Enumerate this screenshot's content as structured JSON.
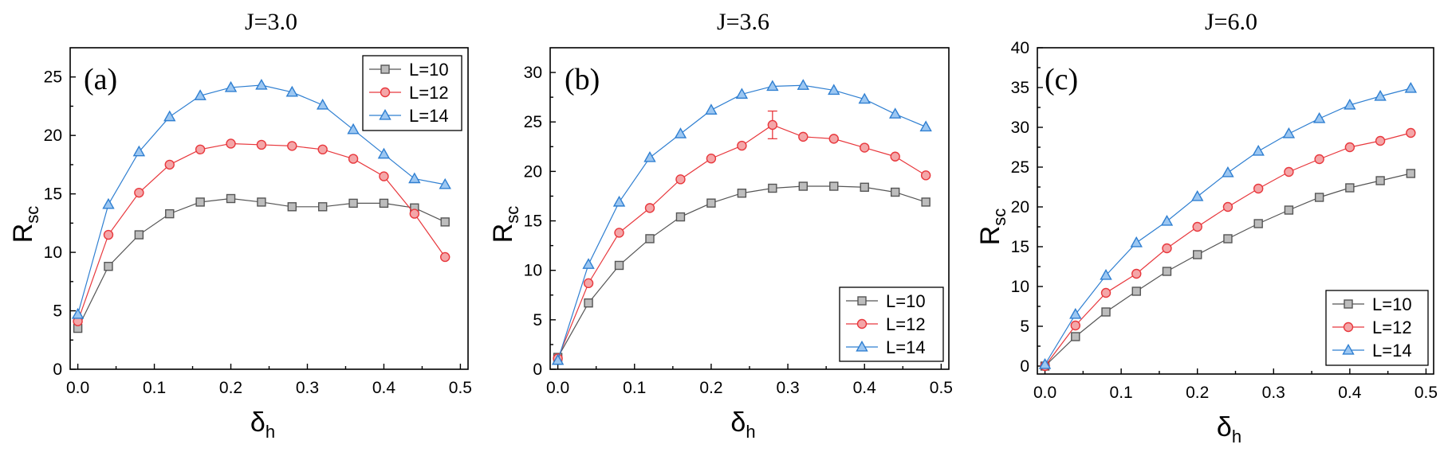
{
  "chart_data": [
    {
      "type": "line",
      "panel_label": "(a)",
      "title": "J=3.0",
      "xlabel": "δ",
      "xlabel_sub": "h",
      "ylabel": "R",
      "ylabel_sub": "sc",
      "xlim": [
        -0.01,
        0.51
      ],
      "ylim": [
        0,
        27.5
      ],
      "xticks": [
        0.0,
        0.1,
        0.2,
        0.3,
        0.4,
        0.5
      ],
      "xtick_labels": [
        "0.0",
        "0.1",
        "0.2",
        "0.3",
        "0.4",
        "0.5"
      ],
      "yticks": [
        0,
        5,
        10,
        15,
        20,
        25
      ],
      "ytick_labels": [
        "0",
        "5",
        "10",
        "15",
        "20",
        "25"
      ],
      "legend_position": "top-right",
      "x": [
        0.0,
        0.04,
        0.08,
        0.12,
        0.16,
        0.2,
        0.24,
        0.28,
        0.32,
        0.36,
        0.4,
        0.44,
        0.48
      ],
      "series": [
        {
          "name": "L=10",
          "marker": "square",
          "color": "#555555",
          "fill": "#bdbdbd",
          "values": [
            3.5,
            8.8,
            11.5,
            13.3,
            14.3,
            14.6,
            14.3,
            13.9,
            13.9,
            14.2,
            14.2,
            13.8,
            12.6
          ]
        },
        {
          "name": "L=12",
          "marker": "circle",
          "color": "#e8383d",
          "fill": "#f4a6a8",
          "values": [
            4.1,
            11.5,
            15.1,
            17.5,
            18.8,
            19.3,
            19.2,
            19.1,
            18.8,
            18.0,
            16.5,
            13.3,
            9.6
          ]
        },
        {
          "name": "L=14",
          "marker": "triangle",
          "color": "#2f7fd1",
          "fill": "#9cc7f2",
          "values": [
            4.7,
            14.1,
            18.6,
            21.6,
            23.4,
            24.1,
            24.3,
            23.7,
            22.6,
            20.5,
            18.4,
            16.3,
            15.8
          ]
        }
      ]
    },
    {
      "type": "line",
      "panel_label": "(b)",
      "title": "J=3.6",
      "xlabel": "δ",
      "xlabel_sub": "h",
      "ylabel": "R",
      "ylabel_sub": "sc",
      "xlim": [
        -0.01,
        0.51
      ],
      "ylim": [
        0,
        32.5
      ],
      "xticks": [
        0.0,
        0.1,
        0.2,
        0.3,
        0.4,
        0.5
      ],
      "xtick_labels": [
        "0.0",
        "0.1",
        "0.2",
        "0.3",
        "0.4",
        "0.5"
      ],
      "yticks": [
        0,
        5,
        10,
        15,
        20,
        25,
        30
      ],
      "ytick_labels": [
        "0",
        "5",
        "10",
        "15",
        "20",
        "25",
        "30"
      ],
      "legend_position": "bottom-right",
      "x": [
        0.0,
        0.04,
        0.08,
        0.12,
        0.16,
        0.2,
        0.24,
        0.28,
        0.32,
        0.36,
        0.4,
        0.44,
        0.48
      ],
      "series": [
        {
          "name": "L=10",
          "marker": "square",
          "color": "#555555",
          "fill": "#bdbdbd",
          "values": [
            1.2,
            6.7,
            10.5,
            13.2,
            15.4,
            16.8,
            17.8,
            18.3,
            18.5,
            18.5,
            18.4,
            17.9,
            16.9
          ]
        },
        {
          "name": "L=12",
          "marker": "circle",
          "color": "#e8383d",
          "fill": "#f4a6a8",
          "values": [
            1.1,
            8.7,
            13.8,
            16.3,
            19.2,
            21.3,
            22.6,
            24.7,
            23.5,
            23.3,
            22.4,
            21.5,
            19.6
          ],
          "error_bar": {
            "x": 0.28,
            "low": 23.3,
            "high": 26.1
          }
        },
        {
          "name": "L=14",
          "marker": "triangle",
          "color": "#2f7fd1",
          "fill": "#9cc7f2",
          "values": [
            0.9,
            10.6,
            16.9,
            21.4,
            23.8,
            26.2,
            27.8,
            28.6,
            28.7,
            28.2,
            27.3,
            25.8,
            24.5
          ]
        }
      ]
    },
    {
      "type": "line",
      "panel_label": "(c)",
      "title": "J=6.0",
      "xlabel": "δ",
      "xlabel_sub": "h",
      "ylabel": "R",
      "ylabel_sub": "sc",
      "xlim": [
        -0.01,
        0.51
      ],
      "ylim": [
        -1,
        40
      ],
      "xticks": [
        0.0,
        0.1,
        0.2,
        0.3,
        0.4,
        0.5
      ],
      "xtick_labels": [
        "0.0",
        "0.1",
        "0.2",
        "0.3",
        "0.4",
        "0.5"
      ],
      "yticks": [
        0,
        5,
        10,
        15,
        20,
        25,
        30,
        35,
        40
      ],
      "ytick_labels": [
        "0",
        "5",
        "10",
        "15",
        "20",
        "25",
        "30",
        "35",
        "40"
      ],
      "legend_position": "bottom-right",
      "x": [
        0.0,
        0.04,
        0.08,
        0.12,
        0.16,
        0.2,
        0.24,
        0.28,
        0.32,
        0.36,
        0.4,
        0.44,
        0.48
      ],
      "series": [
        {
          "name": "L=10",
          "marker": "square",
          "color": "#555555",
          "fill": "#bdbdbd",
          "values": [
            0.0,
            3.7,
            6.8,
            9.4,
            11.9,
            14.0,
            16.0,
            17.9,
            19.6,
            21.2,
            22.4,
            23.3,
            24.2
          ]
        },
        {
          "name": "L=12",
          "marker": "circle",
          "color": "#e8383d",
          "fill": "#f4a6a8",
          "values": [
            0.0,
            5.1,
            9.2,
            11.6,
            14.8,
            17.5,
            20.0,
            22.3,
            24.4,
            26.0,
            27.5,
            28.3,
            29.3
          ]
        },
        {
          "name": "L=14",
          "marker": "triangle",
          "color": "#2f7fd1",
          "fill": "#9cc7f2",
          "values": [
            0.2,
            6.5,
            11.4,
            15.5,
            18.2,
            21.3,
            24.3,
            27.0,
            29.2,
            31.1,
            32.8,
            33.9,
            34.9
          ]
        }
      ]
    }
  ]
}
